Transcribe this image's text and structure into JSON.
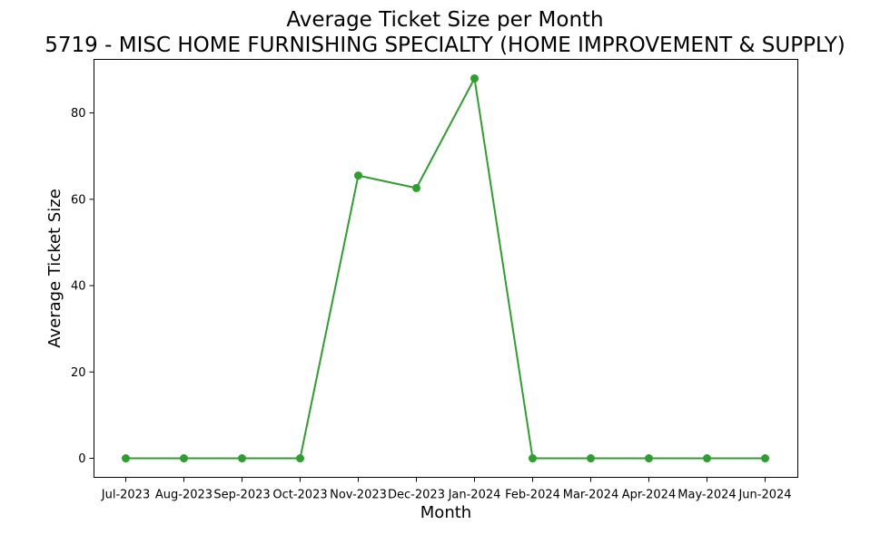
{
  "chart_data": {
    "type": "line",
    "title": "Average Ticket Size per Month",
    "subtitle": "5719 - MISC HOME FURNISHING SPECIALTY (HOME IMPROVEMENT & SUPPLY)",
    "xlabel": "Month",
    "ylabel": "Average Ticket Size",
    "categories": [
      "Jul-2023",
      "Aug-2023",
      "Sep-2023",
      "Oct-2023",
      "Nov-2023",
      "Dec-2023",
      "Jan-2024",
      "Feb-2024",
      "Mar-2024",
      "Apr-2024",
      "May-2024",
      "Jun-2024"
    ],
    "series": [
      {
        "values": [
          0,
          0,
          0,
          0,
          65.5,
          62.6,
          88,
          0,
          0,
          0,
          0,
          0
        ],
        "color": "#2ca02c",
        "marker": "circle"
      }
    ],
    "ylim": [
      -4.4,
      92.4
    ],
    "yticks": [
      0,
      20,
      40,
      60,
      80
    ],
    "grid": false,
    "legend": "none"
  }
}
